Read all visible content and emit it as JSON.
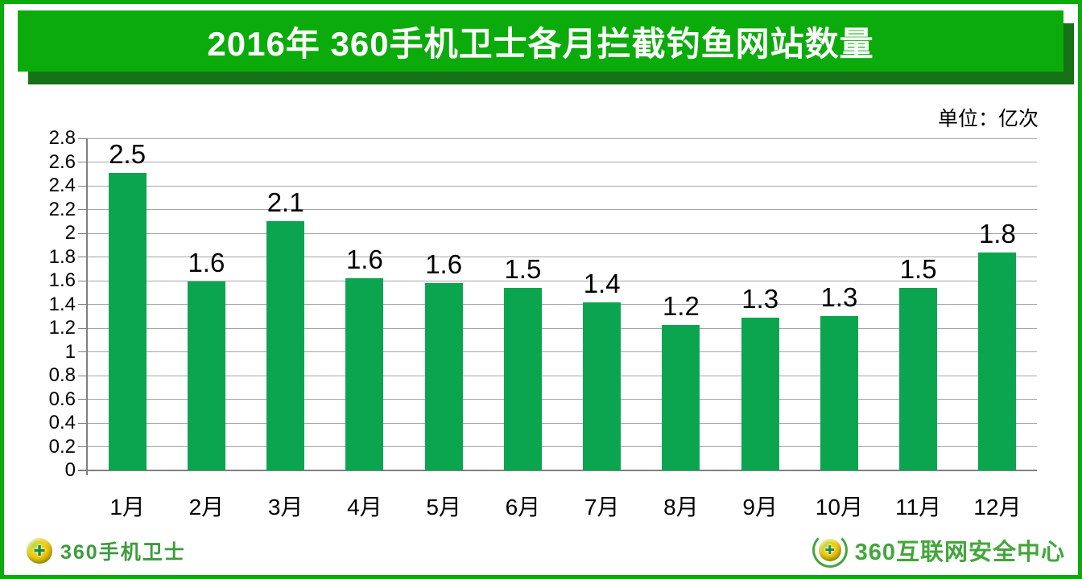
{
  "colors": {
    "frame": "#0BAB0B",
    "banner_bg": "#0BAB0B",
    "banner_shadow": "#167216",
    "bar": "#0CA54F",
    "gridline": "#A6A6A6",
    "axis": "#808080",
    "logo_left_text": "#3E9B3E",
    "logo_right_text": "#43A63B",
    "title_text": "#FFFFFF",
    "label_text": "#000000"
  },
  "header": {
    "title": "2016年 360手机卫士各月拦截钓鱼网站数量"
  },
  "chart_data": {
    "type": "bar",
    "title": "2016年 360手机卫士各月拦截钓鱼网站数量",
    "unit": "单位：亿次",
    "categories": [
      "1月",
      "2月",
      "3月",
      "4月",
      "5月",
      "6月",
      "7月",
      "8月",
      "9月",
      "10月",
      "11月",
      "12月"
    ],
    "values": [
      2.5,
      1.6,
      2.1,
      1.6,
      1.6,
      1.5,
      1.4,
      1.2,
      1.3,
      1.3,
      1.5,
      1.8
    ],
    "value_labels": [
      "2.5",
      "1.6",
      "2.1",
      "1.6",
      "1.6",
      "1.5",
      "1.4",
      "1.2",
      "1.3",
      "1.3",
      "1.5",
      "1.8"
    ],
    "exact_bar_heights": [
      2.51,
      1.59,
      2.1,
      1.62,
      1.58,
      1.54,
      1.42,
      1.23,
      1.29,
      1.3,
      1.54,
      1.84
    ],
    "xlabel": "",
    "ylabel": "",
    "ylim": [
      0,
      2.8
    ],
    "ytick_step": 0.2,
    "yticks": [
      "0",
      "0.2",
      "0.4",
      "0.6",
      "0.8",
      "1",
      "1.2",
      "1.4",
      "1.6",
      "1.8",
      "2",
      "2.2",
      "2.4",
      "2.6",
      "2.8"
    ],
    "grid": true,
    "legend": false,
    "bar_color": "#0CA54F"
  },
  "footer": {
    "left_logo": {
      "text": "360手机卫士",
      "icon": "360-ball-cross-icon"
    },
    "right_logo": {
      "text": "360互联网安全中心",
      "icon": "360-wreath-ball-icon"
    }
  },
  "icons": {
    "cross_glyph": "✚"
  }
}
